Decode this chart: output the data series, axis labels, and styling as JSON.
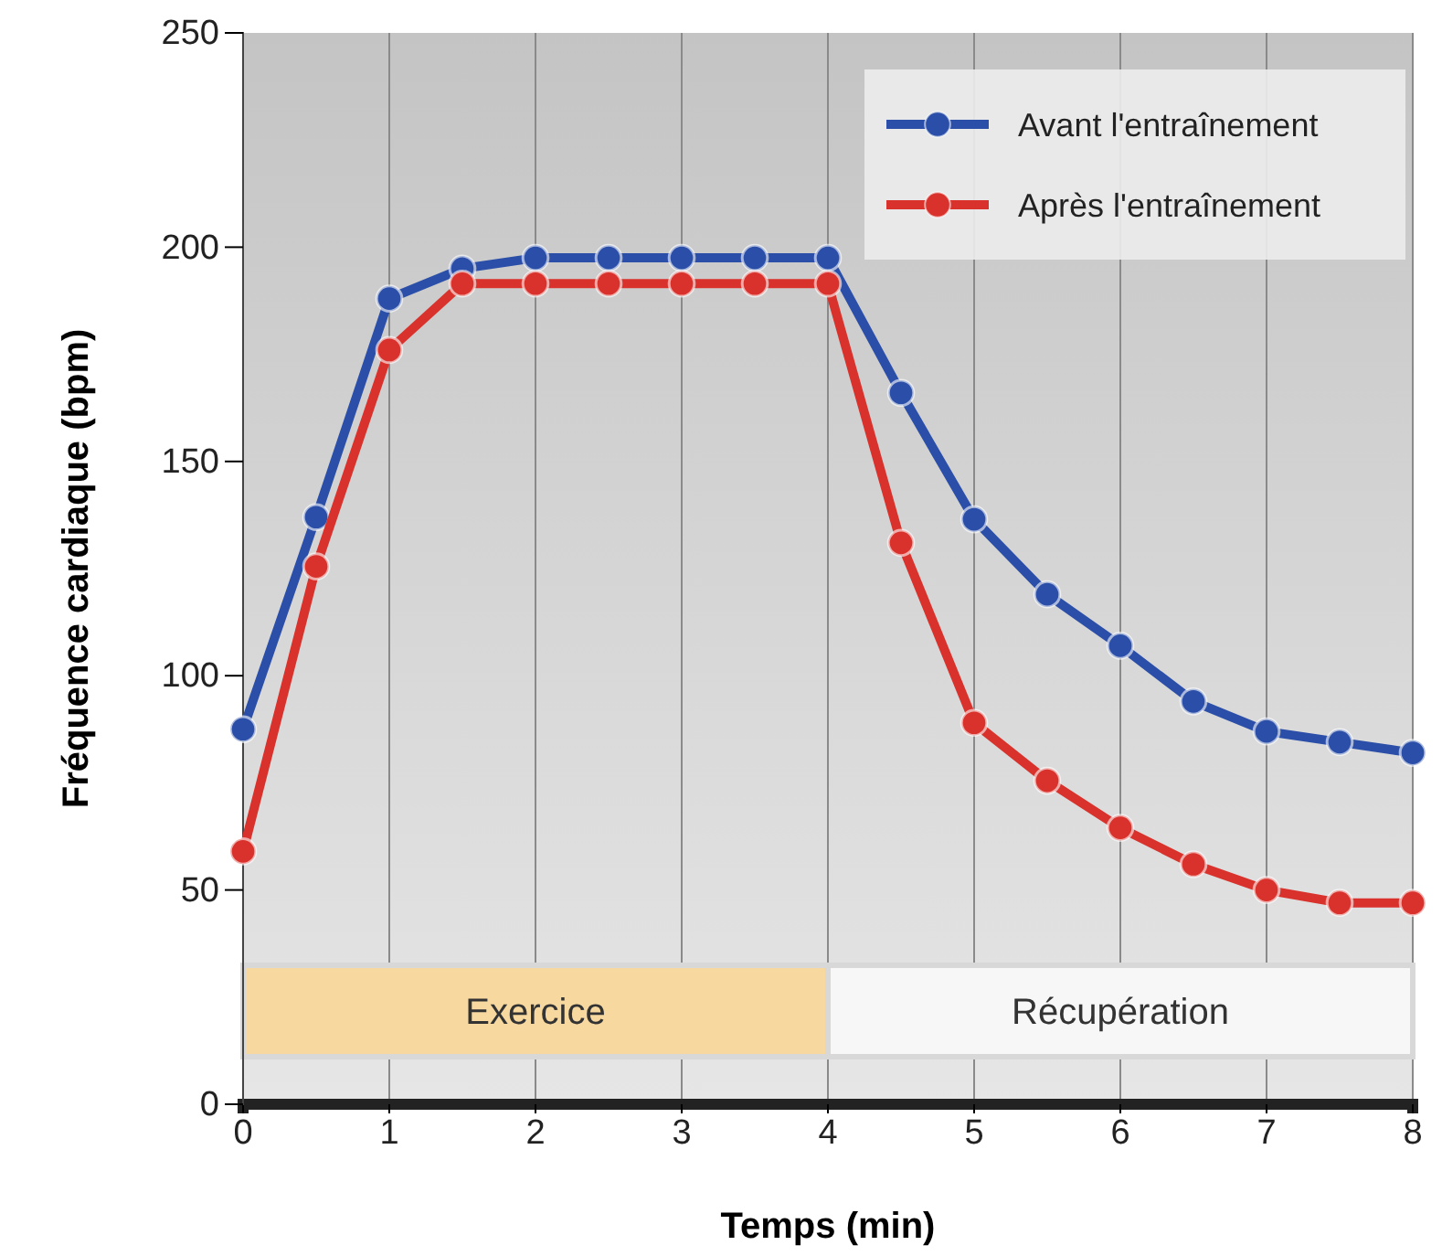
{
  "chart_data": {
    "type": "line",
    "xlabel": "Temps (min)",
    "ylabel": "Fréquence cardiaque (bpm)",
    "x": [
      0,
      0.5,
      1,
      1.5,
      2,
      2.5,
      3,
      3.5,
      4,
      4.5,
      5,
      5.5,
      6,
      6.5,
      7,
      7.5,
      8
    ],
    "series": [
      {
        "name": "Avant l'entraînement",
        "color": "#2b4fa8",
        "values": [
          87.5,
          137,
          188,
          195,
          197.5,
          197.5,
          197.5,
          197.5,
          197.5,
          166,
          136.5,
          119,
          107,
          94,
          87,
          84.5,
          82
        ]
      },
      {
        "name": "Après l'entraînement",
        "color": "#d9312b",
        "values": [
          59,
          125.5,
          176,
          191.5,
          191.5,
          191.5,
          191.5,
          191.5,
          191.5,
          131,
          89,
          75.5,
          64.5,
          56,
          50,
          47,
          47
        ]
      }
    ],
    "xlim": [
      0,
      8
    ],
    "xticks": [
      0,
      1,
      2,
      3,
      4,
      5,
      6,
      7,
      8
    ],
    "ylim": [
      0,
      250
    ],
    "yticks": [
      0,
      50,
      100,
      150,
      200,
      250
    ],
    "bands": [
      {
        "axis": "x",
        "from": 0,
        "to": 4,
        "label": "Exercice",
        "color": "#f7d9a0"
      },
      {
        "axis": "x",
        "from": 4,
        "to": 8,
        "label": "Récupération",
        "color": "#f7f7f7"
      }
    ],
    "grid": "x",
    "legend": "top right",
    "marker": "circle",
    "line_style": "solid"
  }
}
